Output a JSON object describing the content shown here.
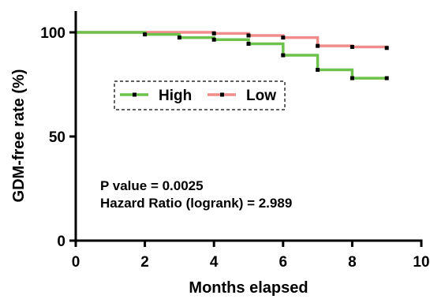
{
  "chart_data": {
    "type": "line",
    "step": true,
    "xlabel": "Months elapsed",
    "ylabel": "GDM-free rate (%)",
    "xlim": [
      0,
      10
    ],
    "ylim": [
      0,
      100
    ],
    "x_ticks": [
      "0",
      "2",
      "4",
      "6",
      "8",
      "10"
    ],
    "y_ticks": [
      "0",
      "50",
      "100"
    ],
    "grid": false,
    "legend_position": "middle-left, boxed with dashed border",
    "series": [
      {
        "name": "High",
        "color": "#6cc24a",
        "points": [
          [
            0,
            100
          ],
          [
            2,
            99
          ],
          [
            3,
            97.5
          ],
          [
            4,
            96.5
          ],
          [
            5,
            94.5
          ],
          [
            6,
            89
          ],
          [
            7,
            82
          ],
          [
            8,
            78
          ],
          [
            9,
            78
          ]
        ],
        "censored": [
          [
            2,
            99
          ],
          [
            3,
            97.5
          ],
          [
            4,
            96.5
          ],
          [
            5,
            94.5
          ],
          [
            6,
            89
          ],
          [
            7,
            82
          ],
          [
            8,
            78
          ],
          [
            9,
            78
          ]
        ]
      },
      {
        "name": "Low",
        "color": "#f08c8c",
        "points": [
          [
            0,
            100
          ],
          [
            4,
            99.5
          ],
          [
            5,
            98.5
          ],
          [
            6,
            97.5
          ],
          [
            7,
            93.5
          ],
          [
            8,
            93
          ],
          [
            9,
            92.5
          ]
        ],
        "censored": [
          [
            4,
            99.5
          ],
          [
            5,
            98.5
          ],
          [
            6,
            97.5
          ],
          [
            7,
            93.5
          ],
          [
            8,
            93
          ],
          [
            9,
            92.5
          ]
        ]
      }
    ],
    "annotations": [
      "P value = 0.0025",
      "Hazard Ratio (logrank) = 2.989"
    ]
  }
}
